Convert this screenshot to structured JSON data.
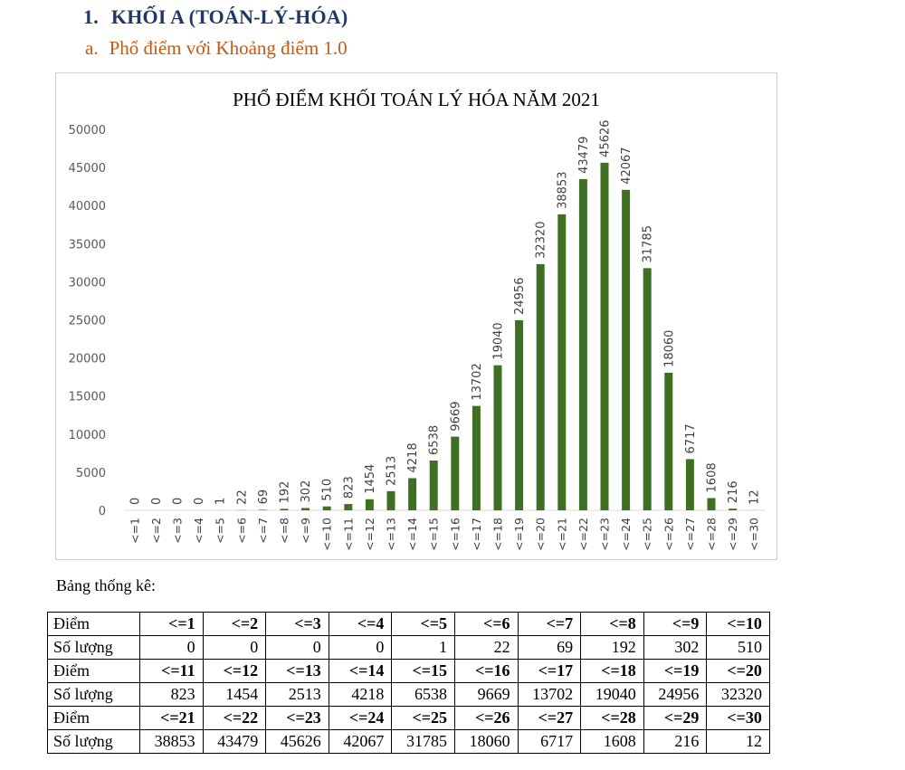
{
  "heading": {
    "number": "1.",
    "text": "KHỐI A (TOÁN-LÝ-HÓA)"
  },
  "subheading": {
    "letter": "a.",
    "text": "Phổ điểm với Khoảng điểm 1.0"
  },
  "colors": {
    "bar": "#3f6f22",
    "heading": "#1f3864",
    "subheading": "#c55a11"
  },
  "chart_data": {
    "type": "bar",
    "title": "PHỔ ĐIỂM KHỐI TOÁN LÝ HÓA NĂM 2021",
    "categories": [
      "<=1",
      "<=2",
      "<=3",
      "<=4",
      "<=5",
      "<=6",
      "<=7",
      "<=8",
      "<=9",
      "<=10",
      "<=11",
      "<=12",
      "<=13",
      "<=14",
      "<=15",
      "<=16",
      "<=17",
      "<=18",
      "<=19",
      "<=20",
      "<=21",
      "<=22",
      "<=23",
      "<=24",
      "<=25",
      "<=26",
      "<=27",
      "<=28",
      "<=29",
      "<=30"
    ],
    "values": [
      0,
      0,
      0,
      0,
      1,
      22,
      69,
      192,
      302,
      510,
      823,
      1454,
      2513,
      4218,
      6538,
      9669,
      13702,
      19040,
      24956,
      32320,
      38853,
      43479,
      45626,
      42067,
      31785,
      18060,
      6717,
      1608,
      216,
      12
    ],
    "ylim": [
      0,
      50000
    ],
    "yticks": [
      0,
      5000,
      10000,
      15000,
      20000,
      25000,
      30000,
      35000,
      40000,
      45000,
      50000
    ],
    "grid": false,
    "data_labels": true,
    "legend": "none"
  },
  "table": {
    "caption": "Bảng thống kê:",
    "rows": [
      {
        "label": "Điểm",
        "header": true,
        "values": [
          "<=1",
          "<=2",
          "<=3",
          "<=4",
          "<=5",
          "<=6",
          "<=7",
          "<=8",
          "<=9",
          "<=10"
        ]
      },
      {
        "label": "Số lượng",
        "header": false,
        "values": [
          "0",
          "0",
          "0",
          "0",
          "1",
          "22",
          "69",
          "192",
          "302",
          "510"
        ]
      },
      {
        "label": "Điểm",
        "header": true,
        "values": [
          "<=11",
          "<=12",
          "<=13",
          "<=14",
          "<=15",
          "<=16",
          "<=17",
          "<=18",
          "<=19",
          "<=20"
        ]
      },
      {
        "label": "Số lượng",
        "header": false,
        "values": [
          "823",
          "1454",
          "2513",
          "4218",
          "6538",
          "9669",
          "13702",
          "19040",
          "24956",
          "32320"
        ]
      },
      {
        "label": "Điểm",
        "header": true,
        "values": [
          "<=21",
          "<=22",
          "<=23",
          "<=24",
          "<=25",
          "<=26",
          "<=27",
          "<=28",
          "<=29",
          "<=30"
        ]
      },
      {
        "label": "Số lượng",
        "header": false,
        "values": [
          "38853",
          "43479",
          "45626",
          "42067",
          "31785",
          "18060",
          "6717",
          "1608",
          "216",
          "12"
        ]
      }
    ]
  }
}
